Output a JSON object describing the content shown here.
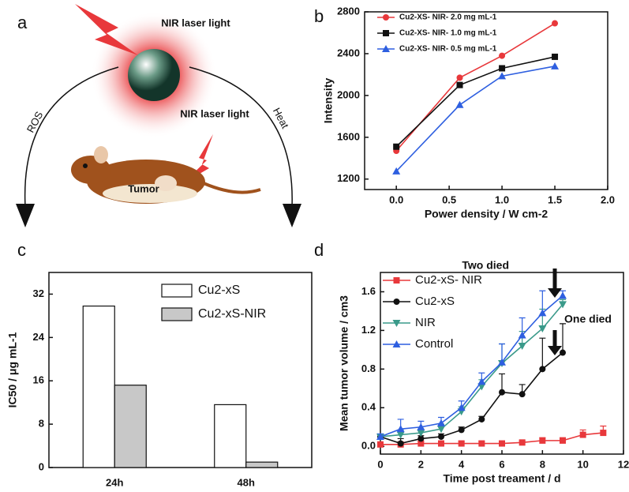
{
  "illustration": {
    "panel_label": "a",
    "laser_top": "NIR laser light",
    "laser_mouse": "NIR laser light",
    "left_arrow": "ROS",
    "right_arrow": "Heat",
    "mouse": "Tumor"
  },
  "chart_data": [
    {
      "type": "line",
      "panel_label": "b",
      "xlabel": "Power density / W cm-2",
      "ylabel": "Intensity",
      "x": [
        0,
        0.6,
        1.0,
        1.5
      ],
      "series": [
        {
          "name": "Cu2-XS- NIR- 2.0 mg mL-1",
          "color": "#e8383b",
          "marker": "circle",
          "values": [
            1470,
            2170,
            2380,
            2690
          ]
        },
        {
          "name": "Cu2-XS- NIR- 1.0 mg mL-1",
          "color": "#111111",
          "marker": "square",
          "values": [
            1510,
            2100,
            2260,
            2370
          ]
        },
        {
          "name": "Cu2-XS- NIR- 0.5 mg mL-1",
          "color": "#2e5fe0",
          "marker": "triangle",
          "values": [
            1275,
            1910,
            2185,
            2280
          ]
        }
      ],
      "xlim": [
        -0.3,
        2.0
      ],
      "xticks": [
        {
          "value": 0,
          "label": "0.0"
        },
        0.5,
        {
          "value": 1,
          "label": "1.0"
        },
        1.5,
        {
          "value": 2,
          "label": "2.0"
        }
      ],
      "ylim": [
        1100,
        2800
      ],
      "yticks": [
        1200,
        1600,
        2000,
        2400,
        2800
      ],
      "legend": "upper left"
    },
    {
      "type": "bar",
      "panel_label": "c",
      "ylabel": "IC50 / μg mL-1",
      "categories": [
        "24h",
        "48h"
      ],
      "series": [
        {
          "name": "Cu2-xS",
          "color": "#ffffff",
          "values": [
            29.8,
            11.6
          ]
        },
        {
          "name": "Cu2-xS-NIR",
          "color": "#c8c8c8",
          "values": [
            15.2,
            1.0
          ]
        }
      ],
      "ylim": [
        0,
        36
      ],
      "yticks": [
        0,
        8,
        16,
        24,
        32
      ],
      "legend": "upper right"
    },
    {
      "type": "line",
      "panel_label": "d",
      "xlabel": "Time post treament / d",
      "ylabel": "Mean tumor volume / cm3",
      "x": [
        0,
        1,
        2,
        3,
        4,
        5,
        6,
        7,
        8,
        9,
        10,
        11
      ],
      "series": [
        {
          "name": "Cu2-xS- NIR",
          "color": "#e8383b",
          "marker": "square",
          "values": [
            0.02,
            0.02,
            0.03,
            0.03,
            0.03,
            0.03,
            0.03,
            0.04,
            0.06,
            0.06,
            0.12,
            0.14
          ],
          "error": [
            0.02,
            0.02,
            0.02,
            0.02,
            0.02,
            0.02,
            0.02,
            0.02,
            0.03,
            0.03,
            0.05,
            0.07
          ]
        },
        {
          "name": "Cu2-xS",
          "color": "#111111",
          "marker": "circle",
          "values": [
            0.1,
            0.03,
            0.08,
            0.1,
            0.17,
            0.28,
            0.56,
            0.54,
            0.8,
            0.97,
            null,
            null
          ],
          "error": [
            0.02,
            0.05,
            0.03,
            0.03,
            0.03,
            0.03,
            0.19,
            0.1,
            0.32,
            0.3,
            null,
            null
          ]
        },
        {
          "name": "NIR",
          "color": "#3a9a8a",
          "marker": "triangle-down",
          "values": [
            0.1,
            0.12,
            0.14,
            0.18,
            0.36,
            0.62,
            0.86,
            1.04,
            1.22,
            1.47,
            null,
            null
          ],
          "error": [
            0.02,
            0.05,
            0.04,
            0.05,
            0.05,
            0.07,
            0.2,
            0.15,
            0.2,
            0.05,
            null,
            null
          ]
        },
        {
          "name": "Control",
          "color": "#2e5fe0",
          "marker": "triangle",
          "values": [
            0.1,
            0.18,
            0.2,
            0.24,
            0.4,
            0.67,
            0.87,
            1.15,
            1.38,
            1.56,
            null,
            null
          ],
          "error": [
            0.03,
            0.1,
            0.06,
            0.06,
            0.07,
            0.09,
            0.19,
            0.18,
            0.23,
            0.05,
            null,
            null
          ]
        }
      ],
      "annotations": [
        "Two died",
        "One died"
      ],
      "xlim": [
        0,
        12
      ],
      "xticks": [
        0,
        2,
        4,
        6,
        8,
        10,
        12
      ],
      "ylim": [
        -0.08,
        1.8
      ],
      "yticks": [
        {
          "value": 0,
          "label": "0.0"
        },
        0.4,
        0.8,
        1.2,
        1.6
      ],
      "legend": "upper left"
    }
  ]
}
